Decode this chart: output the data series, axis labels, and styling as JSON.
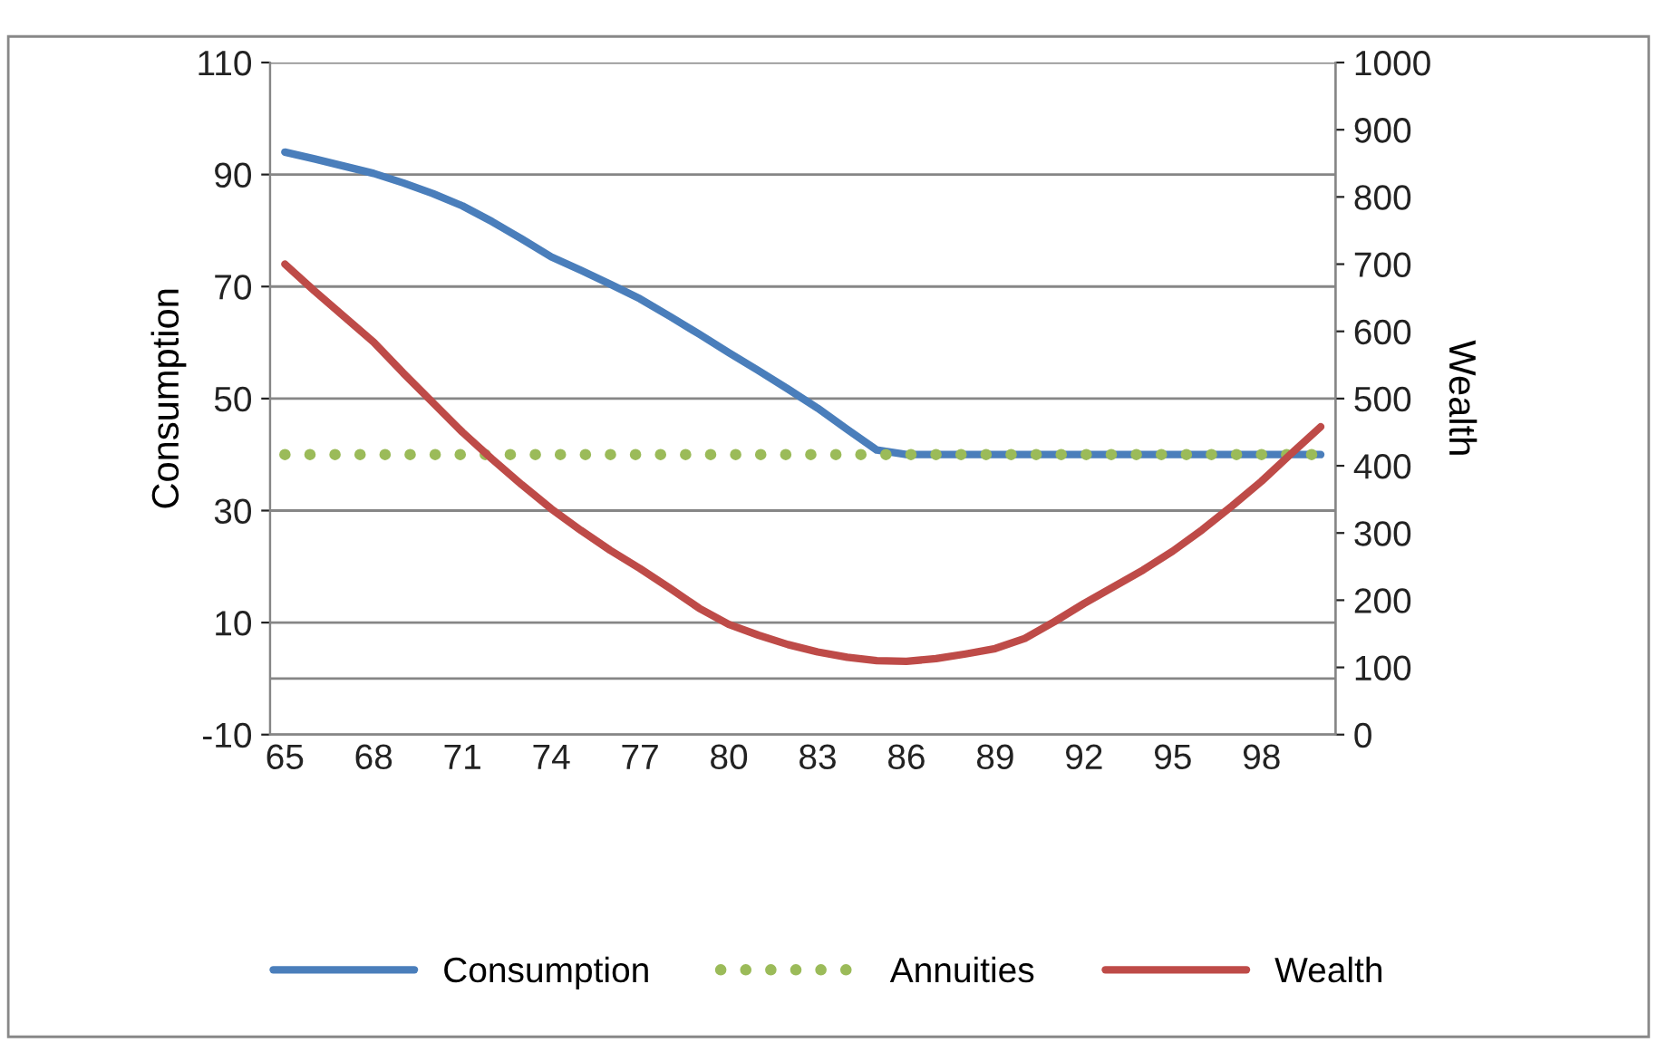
{
  "chart_data": {
    "type": "line",
    "categories": [
      "65",
      null,
      null,
      "68",
      null,
      null,
      "71",
      null,
      null,
      "74",
      null,
      null,
      "77",
      null,
      null,
      "80",
      null,
      null,
      "83",
      null,
      null,
      "86",
      null,
      null,
      "89",
      null,
      null,
      "92",
      null,
      null,
      "95",
      null,
      null,
      "98",
      null,
      null
    ],
    "series": [
      {
        "name": "Consumption",
        "color": "#4a7ebb",
        "line_style": "solid",
        "values": [
          94,
          92.8,
          91.5,
          90.2,
          88.5,
          86.6,
          84.4,
          81.6,
          78.5,
          75.3,
          72.9,
          70.4,
          67.8,
          64.7,
          61.5,
          58.2,
          55,
          51.7,
          48.3,
          44.5,
          40.8,
          40,
          40,
          40,
          40,
          40,
          40,
          40,
          40,
          40,
          40,
          40,
          40,
          40,
          40,
          40
        ]
      },
      {
        "name": "Annuities",
        "color": "#9bbb59",
        "line_style": "dotted",
        "values": [
          40,
          40,
          40,
          40,
          40,
          40,
          40,
          40,
          40,
          40,
          40,
          40,
          40,
          40,
          40,
          40,
          40,
          40,
          40,
          40,
          40,
          40,
          40,
          40,
          40,
          40,
          40,
          40,
          40,
          40,
          40,
          40,
          40,
          40,
          40,
          40
        ]
      },
      {
        "name": "Wealth",
        "color": "#be4b48",
        "line_style": "solid",
        "axis": "y2",
        "values": [
          700,
          660,
          622,
          584,
          538,
          494,
          450,
          410,
          372,
          336,
          304,
          274,
          247,
          218,
          188,
          164,
          148,
          134,
          123,
          115,
          110,
          109,
          113,
          120,
          128,
          143,
          168,
          195,
          220,
          245,
          273,
          305,
          340,
          377,
          418,
          458
        ]
      }
    ],
    "ylabel": "Consumption",
    "y2label": "Wealth",
    "ylim": [
      -10,
      110
    ],
    "yticks": [
      -10,
      10,
      30,
      50,
      70,
      90,
      110
    ],
    "y2lim": [
      0,
      1000
    ],
    "y2ticks": [
      0,
      100,
      200,
      300,
      400,
      500,
      600,
      700,
      800,
      900,
      1000
    ],
    "ref_lines": [
      {
        "axis": "y",
        "value": 0,
        "color": "#868686"
      }
    ],
    "grid": "y",
    "legend": "bottom",
    "marker": "none"
  }
}
